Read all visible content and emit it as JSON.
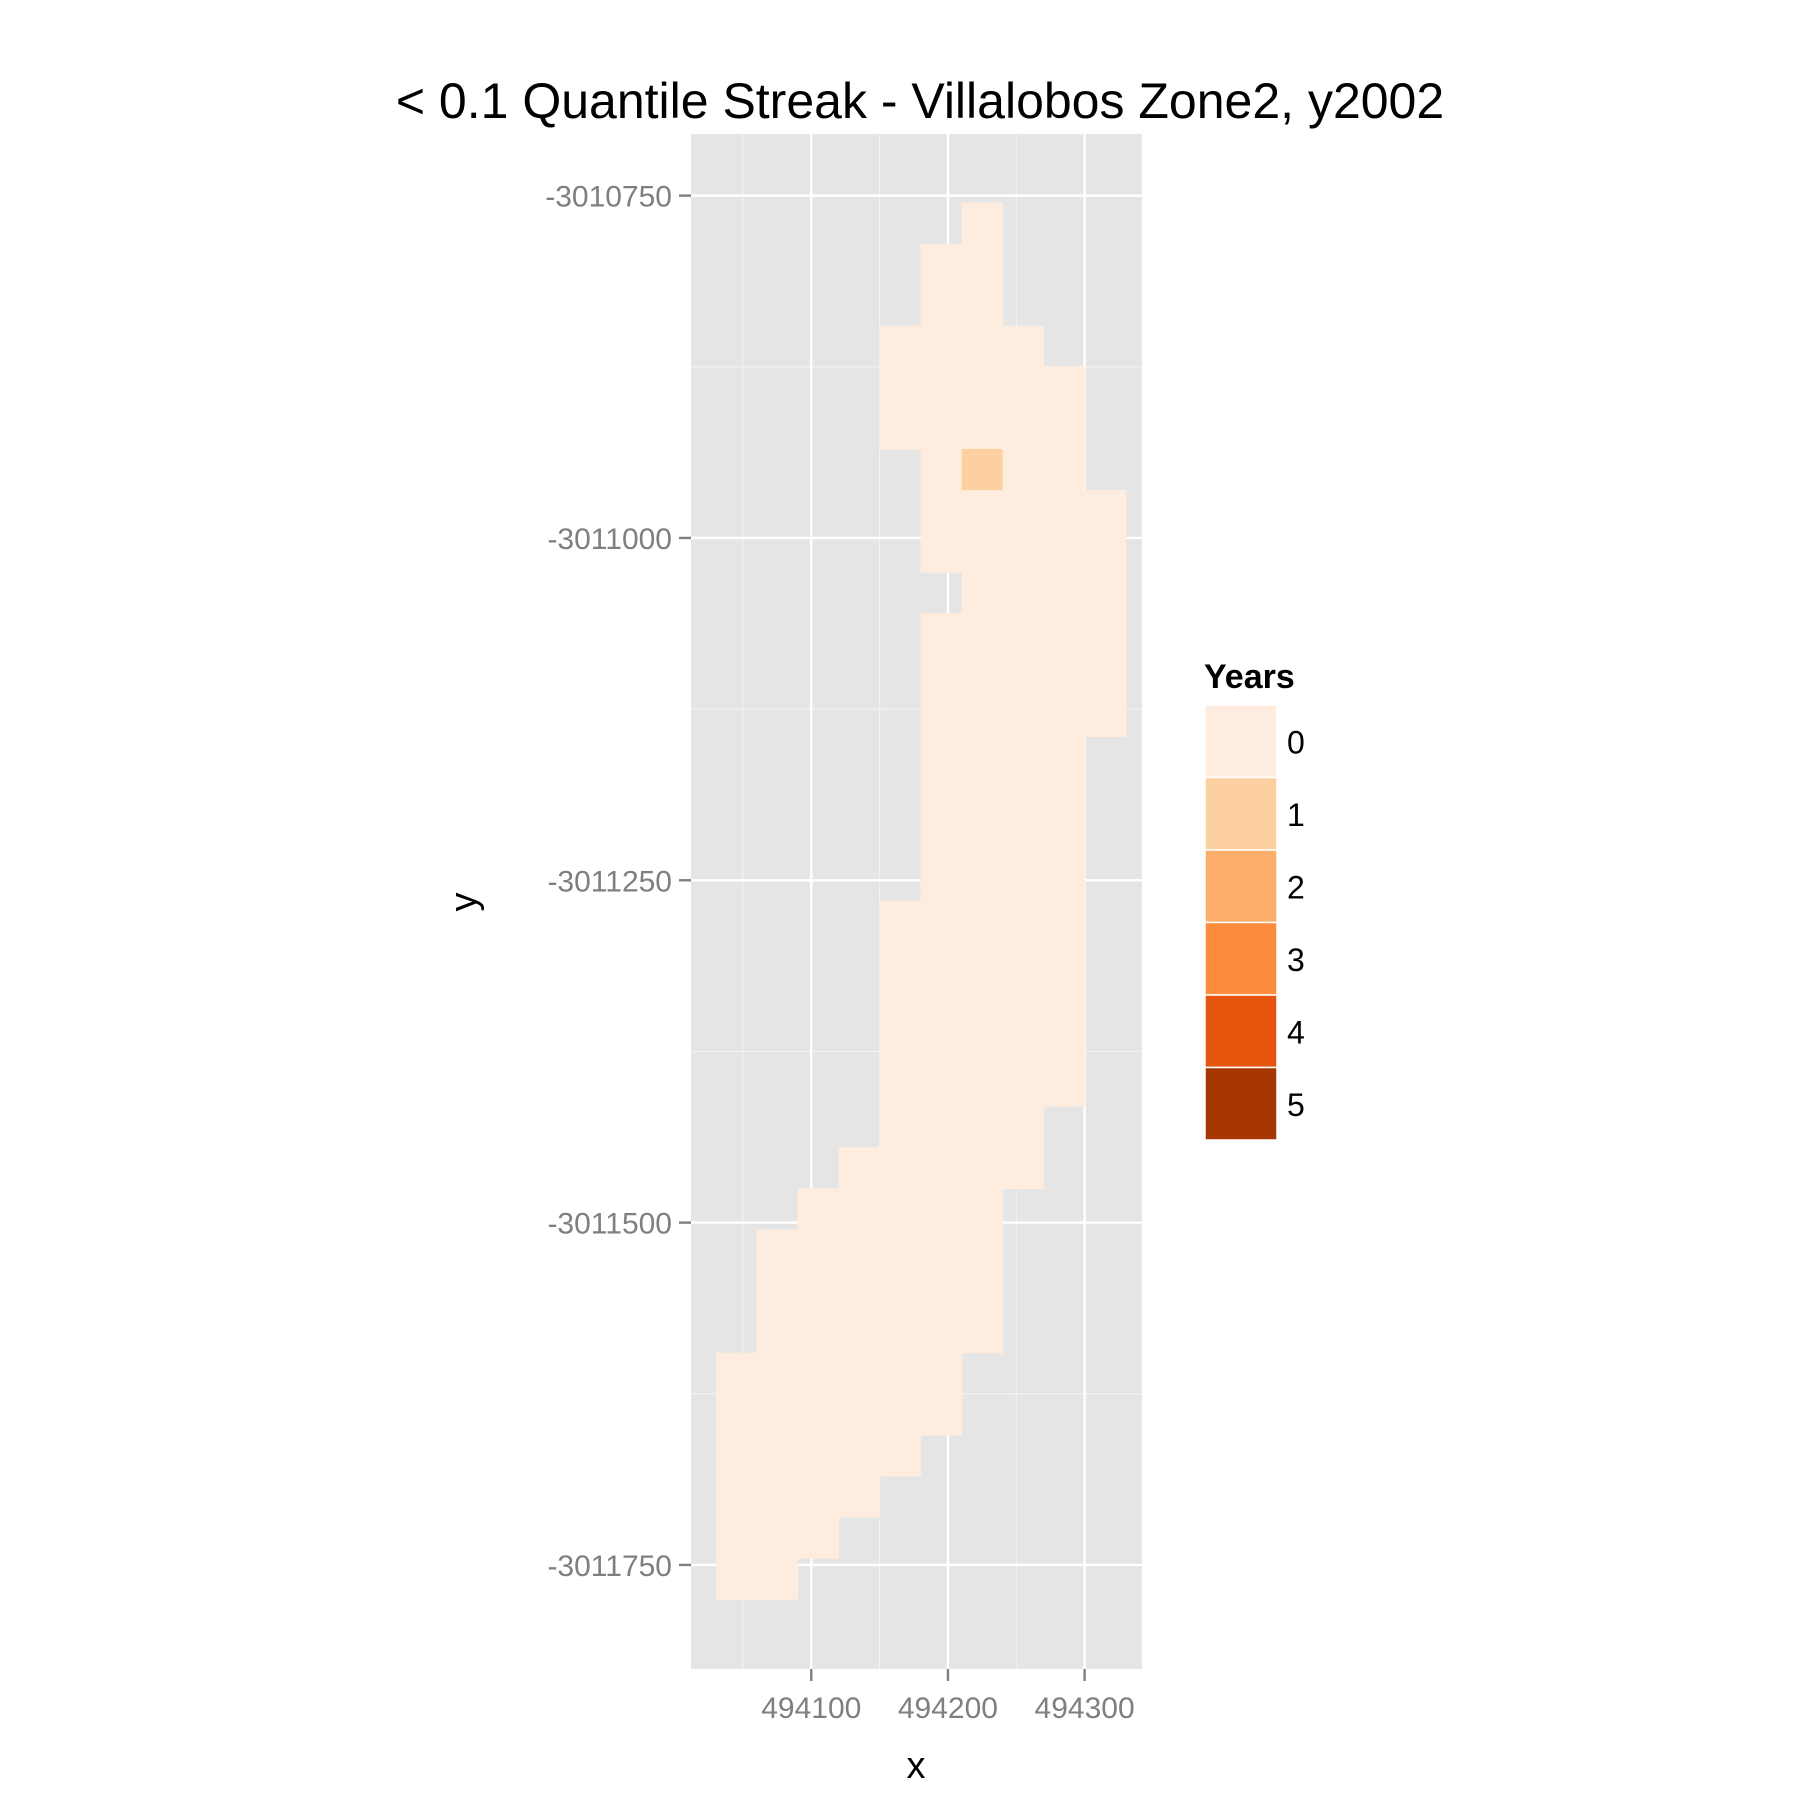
{
  "chart_data": {
    "type": "heatmap",
    "title": "< 0.1 Quantile Streak - Villalobos Zone2, y2002",
    "xlabel": "x",
    "ylabel": "y",
    "x_ticks": [
      494100,
      494200,
      494300
    ],
    "y_ticks": [
      -3010750,
      -3011000,
      -3011250,
      -3011500,
      -3011750
    ],
    "x_tick_labels": [
      "494100",
      "494200",
      "494300"
    ],
    "y_tick_labels": [
      "-3010750",
      "-3011000",
      "-3011250",
      "-3011500",
      "-3011750"
    ],
    "xlim": [
      494012,
      494342
    ],
    "ylim": [
      -3011826,
      -3010705
    ],
    "cell_width": 30,
    "cell_height": 30,
    "grid": true,
    "legend": {
      "title": "Years",
      "position": "right",
      "levels": [
        {
          "label": "0",
          "color": "#FEEDDE"
        },
        {
          "label": "1",
          "color": "#FDD0A2"
        },
        {
          "label": "2",
          "color": "#FDAE6B"
        },
        {
          "label": "3",
          "color": "#FD8D3C"
        },
        {
          "label": "4",
          "color": "#E6550D"
        },
        {
          "label": "5",
          "color": "#A63603"
        }
      ]
    },
    "rows": [
      {
        "y": -3010770,
        "x_start": 494225,
        "x_end": 494225
      },
      {
        "y": -3010800,
        "x_start": 494195,
        "x_end": 494225
      },
      {
        "y": -3010830,
        "x_start": 494195,
        "x_end": 494225
      },
      {
        "y": -3010860,
        "x_start": 494165,
        "x_end": 494255
      },
      {
        "y": -3010890,
        "x_start": 494165,
        "x_end": 494285
      },
      {
        "y": -3010920,
        "x_start": 494165,
        "x_end": 494285
      },
      {
        "y": -3010950,
        "x_start": 494195,
        "x_end": 494285
      },
      {
        "y": -3010980,
        "x_start": 494195,
        "x_end": 494315
      },
      {
        "y": -3011010,
        "x_start": 494195,
        "x_end": 494315
      },
      {
        "y": -3011040,
        "x_start": 494225,
        "x_end": 494315
      },
      {
        "y": -3011070,
        "x_start": 494195,
        "x_end": 494315
      },
      {
        "y": -3011100,
        "x_start": 494195,
        "x_end": 494315
      },
      {
        "y": -3011130,
        "x_start": 494195,
        "x_end": 494315
      },
      {
        "y": -3011160,
        "x_start": 494195,
        "x_end": 494285
      },
      {
        "y": -3011190,
        "x_start": 494195,
        "x_end": 494285
      },
      {
        "y": -3011220,
        "x_start": 494195,
        "x_end": 494285
      },
      {
        "y": -3011250,
        "x_start": 494195,
        "x_end": 494285
      },
      {
        "y": -3011280,
        "x_start": 494165,
        "x_end": 494285
      },
      {
        "y": -3011310,
        "x_start": 494165,
        "x_end": 494285
      },
      {
        "y": -3011340,
        "x_start": 494165,
        "x_end": 494285
      },
      {
        "y": -3011370,
        "x_start": 494165,
        "x_end": 494285
      },
      {
        "y": -3011400,
        "x_start": 494165,
        "x_end": 494285
      },
      {
        "y": -3011430,
        "x_start": 494165,
        "x_end": 494255
      },
      {
        "y": -3011460,
        "x_start": 494135,
        "x_end": 494255
      },
      {
        "y": -3011490,
        "x_start": 494105,
        "x_end": 494225
      },
      {
        "y": -3011520,
        "x_start": 494075,
        "x_end": 494225
      },
      {
        "y": -3011550,
        "x_start": 494075,
        "x_end": 494225
      },
      {
        "y": -3011580,
        "x_start": 494075,
        "x_end": 494225
      },
      {
        "y": -3011610,
        "x_start": 494045,
        "x_end": 494195
      },
      {
        "y": -3011640,
        "x_start": 494045,
        "x_end": 494195
      },
      {
        "y": -3011670,
        "x_start": 494045,
        "x_end": 494165
      },
      {
        "y": -3011700,
        "x_start": 494045,
        "x_end": 494135
      },
      {
        "y": -3011730,
        "x_start": 494045,
        "x_end": 494105
      },
      {
        "y": -3011760,
        "x_start": 494045,
        "x_end": 494075
      }
    ],
    "default_value": 0,
    "cells": [
      {
        "x": 494225,
        "y": -3010950,
        "value": 1
      }
    ]
  }
}
